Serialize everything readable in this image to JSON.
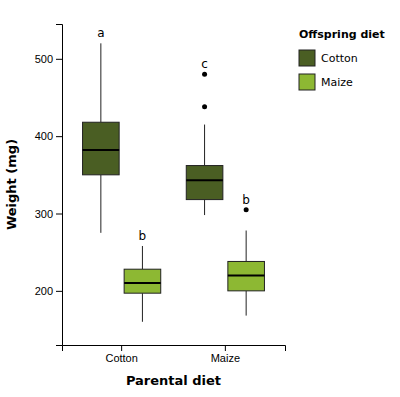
{
  "chart_data": {
    "type": "box",
    "title": "",
    "xlabel": "Parental diet",
    "ylabel": "Weight (mg)",
    "categories": [
      "Cotton",
      "Maize"
    ],
    "series": [
      {
        "name": "Cotton",
        "color": "#4a5e23",
        "whislo": [
          275,
          298
        ],
        "q1": [
          350,
          318
        ],
        "med": [
          382,
          343
        ],
        "q3": [
          418,
          362
        ],
        "whishi": [
          520,
          415
        ],
        "fliers": [
          [],
          [
            438,
            480
          ]
        ],
        "annotations": [
          "a",
          "c"
        ]
      },
      {
        "name": "Maize",
        "color": "#8db833",
        "whislo": [
          160,
          168
        ],
        "q1": [
          197,
          200
        ],
        "med": [
          210,
          220
        ],
        "q3": [
          228,
          238
        ],
        "whishi": [
          258,
          278
        ],
        "fliers": [
          [],
          [
            305
          ]
        ],
        "annotations": [
          "b",
          "b"
        ]
      }
    ],
    "ylim": [
      130,
      545
    ],
    "yticks": [
      200,
      300,
      400,
      500
    ],
    "grid": false,
    "legend": "right",
    "legend_title": "Offspring diet"
  }
}
